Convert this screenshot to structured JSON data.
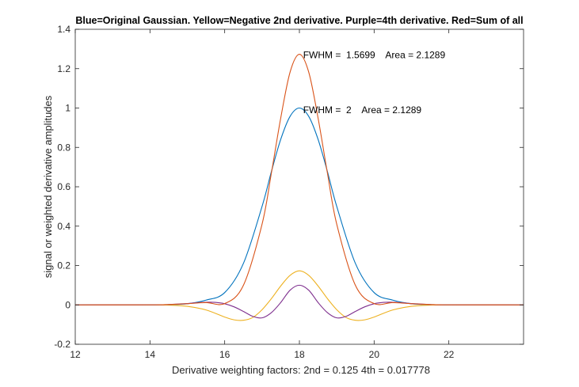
{
  "chart_data": {
    "type": "line",
    "title": "Blue=Original Gaussian.   Yellow=Negative 2nd derivative.   Purple=4th derivative.   Red=Sum of all",
    "xlabel": "Derivative weighting factors:     2nd =  0.125    4th = 0.017778",
    "ylabel": "signal or weighted derivative amplitudes",
    "xlim": [
      12,
      24
    ],
    "ylim": [
      -0.2,
      1.4
    ],
    "xticks": [
      "12",
      "14",
      "16",
      "18",
      "20",
      "22"
    ],
    "yticks": [
      "-0.2",
      "0",
      "0.2",
      "0.4",
      "0.6",
      "0.8",
      "1",
      "1.2",
      "1.4"
    ],
    "grid": false,
    "series": [
      {
        "color": "#0072BD",
        "x": [
          12,
          13,
          14,
          14.5,
          15,
          15.5,
          16,
          16.5,
          17,
          17.25,
          17.5,
          17.75,
          18,
          18.25,
          18.5,
          18.75,
          19,
          19.5,
          20,
          20.5,
          21,
          21.5,
          22,
          23,
          24
        ],
        "y": [
          0,
          0,
          0.0002,
          0.0012,
          0.0059,
          0.0241,
          0.0625,
          0.2102,
          0.5,
          0.6771,
          0.8409,
          0.9576,
          1,
          0.9576,
          0.8409,
          0.6771,
          0.5,
          0.2102,
          0.0625,
          0.0241,
          0.0059,
          0.0012,
          0.0002,
          0,
          0
        ]
      },
      {
        "color": "#EDB120",
        "x": [
          12,
          14,
          14.5,
          15,
          15.5,
          16,
          16.25,
          16.5,
          16.75,
          17,
          17.25,
          17.5,
          17.75,
          18,
          18.25,
          18.5,
          18.75,
          19,
          19.25,
          19.5,
          19.75,
          20,
          20.5,
          21,
          21.5,
          22,
          24
        ],
        "y": [
          0,
          -0.0001,
          -0.0012,
          -0.0071,
          -0.0257,
          -0.0618,
          -0.0758,
          -0.0782,
          -0.064,
          -0.0245,
          0.0318,
          0.0961,
          0.15,
          0.173,
          0.15,
          0.0961,
          0.0318,
          -0.0245,
          -0.064,
          -0.0782,
          -0.0758,
          -0.0618,
          -0.0257,
          -0.0071,
          -0.0012,
          -0.0001,
          0
        ]
      },
      {
        "color": "#7E2F8E",
        "x": [
          12,
          14,
          14.5,
          15,
          15.25,
          15.5,
          15.75,
          16,
          16.25,
          16.5,
          16.75,
          17,
          17.25,
          17.5,
          17.75,
          18,
          18.25,
          18.5,
          18.75,
          19,
          19.25,
          19.5,
          19.75,
          20,
          20.25,
          20.5,
          20.75,
          21,
          21.5,
          22,
          24
        ],
        "y": [
          0,
          0.0004,
          0.002,
          0.007,
          0.0108,
          0.0135,
          0.0127,
          0.0059,
          -0.0098,
          -0.033,
          -0.0582,
          -0.0659,
          -0.0394,
          0.012,
          0.0746,
          0.1,
          0.0746,
          0.012,
          -0.0394,
          -0.0659,
          -0.0582,
          -0.033,
          -0.0098,
          0.0059,
          0.0127,
          0.0135,
          0.0108,
          0.007,
          0.002,
          0.0004,
          0
        ]
      },
      {
        "color": "#D95319",
        "x": [
          12,
          14,
          14.5,
          15,
          15.5,
          16,
          16.5,
          17,
          17.25,
          17.5,
          17.75,
          18,
          18.25,
          18.5,
          18.75,
          19,
          19.5,
          20,
          20.5,
          21,
          21.5,
          22,
          24
        ],
        "y": [
          0,
          0.0005,
          0.002,
          0.0058,
          0.0119,
          0.0066,
          0.099,
          0.4096,
          0.6695,
          0.949,
          1.1822,
          1.273,
          1.1822,
          0.949,
          0.6695,
          0.4096,
          0.099,
          0.0066,
          0.0119,
          0.0058,
          0.002,
          0.0005,
          0
        ]
      }
    ],
    "annotations": [
      {
        "text": "FWHM =  1.5699    Area = 2.1289",
        "x": 18.1,
        "y": 1.27
      },
      {
        "text": "FWHM =  2    Area = 2.1289",
        "x": 18.1,
        "y": 0.99
      }
    ]
  }
}
